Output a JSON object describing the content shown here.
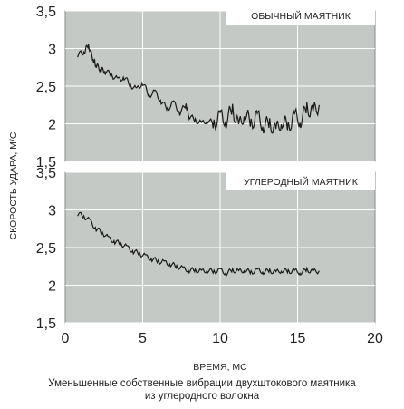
{
  "chart_data": [
    {
      "type": "line",
      "title": "ОБЫЧНЫЙ МАЯТНИК",
      "ylabel": "СКОРОСТЬ УДАРА, М/С",
      "xlabel": "ВРЕМЯ, МС",
      "xlim": [
        0,
        20
      ],
      "ylim": [
        1.5,
        3.5
      ],
      "grid": true,
      "yticks": [
        "1,5",
        "2",
        "2,5",
        "3",
        "3,5"
      ],
      "x": [
        0.8,
        1.2,
        1.5,
        1.8,
        2.0,
        2.3,
        2.6,
        3.0,
        3.4,
        3.8,
        4.2,
        4.6,
        5.0,
        5.4,
        5.8,
        6.2,
        6.6,
        7.0,
        7.4,
        7.8,
        8.0,
        8.4,
        8.8,
        9.2,
        9.6,
        10.0,
        10.4,
        10.8,
        11.2,
        11.6,
        12.0,
        12.4,
        12.8,
        13.2,
        13.6,
        14.0,
        14.4,
        14.8,
        15.2,
        15.6,
        16.0,
        16.4
      ],
      "values": [
        2.92,
        2.95,
        3.05,
        2.85,
        2.78,
        2.72,
        2.7,
        2.65,
        2.58,
        2.62,
        2.52,
        2.45,
        2.55,
        2.38,
        2.42,
        2.3,
        2.2,
        2.28,
        2.15,
        2.25,
        2.1,
        2.05,
        2.0,
        2.05,
        2.0,
        2.1,
        2.05,
        2.2,
        1.95,
        2.15,
        2.0,
        2.1,
        1.98,
        2.0,
        1.9,
        2.05,
        1.95,
        2.1,
        2.05,
        2.2,
        2.15,
        2.25
      ]
    },
    {
      "type": "line",
      "title": "УГЛЕРОДНЫЙ МАЯТНИК",
      "ylabel": "СКОРОСТЬ УДАРА, М/С",
      "xlabel": "ВРЕМЯ, МС",
      "xlim": [
        0,
        20
      ],
      "ylim": [
        1.5,
        3.5
      ],
      "grid": true,
      "yticks": [
        "1,5",
        "2",
        "2,5",
        "3",
        "3,5"
      ],
      "xticks": [
        "0",
        "5",
        "10",
        "15",
        "20"
      ],
      "x": [
        0.8,
        1.2,
        1.6,
        2.0,
        2.4,
        2.8,
        3.2,
        3.6,
        4.0,
        4.4,
        4.8,
        5.2,
        5.6,
        6.0,
        6.4,
        6.8,
        7.2,
        7.6,
        8.0,
        8.4,
        8.8,
        9.2,
        9.6,
        10.0,
        10.4,
        10.8,
        11.2,
        11.6,
        12.0,
        12.4,
        12.8,
        13.2,
        13.6,
        14.0,
        14.4,
        14.8,
        15.2,
        15.6,
        16.0,
        16.4
      ],
      "values": [
        2.95,
        2.92,
        2.85,
        2.75,
        2.7,
        2.62,
        2.58,
        2.55,
        2.5,
        2.45,
        2.42,
        2.38,
        2.35,
        2.32,
        2.3,
        2.28,
        2.25,
        2.22,
        2.2,
        2.2,
        2.18,
        2.2,
        2.18,
        2.2,
        2.16,
        2.2,
        2.18,
        2.2,
        2.17,
        2.2,
        2.18,
        2.19,
        2.17,
        2.2,
        2.18,
        2.19,
        2.17,
        2.2,
        2.18,
        2.19
      ]
    }
  ],
  "caption": {
    "line1": "Уменьшенные собственные вибрации двухштокового маятника",
    "line2": "из углеродного волокна"
  },
  "colors": {
    "plot_bg": "#c5c9c5",
    "grid": "#ffffff",
    "line": "#1a1a1a",
    "label_bg": "#ffffff"
  }
}
